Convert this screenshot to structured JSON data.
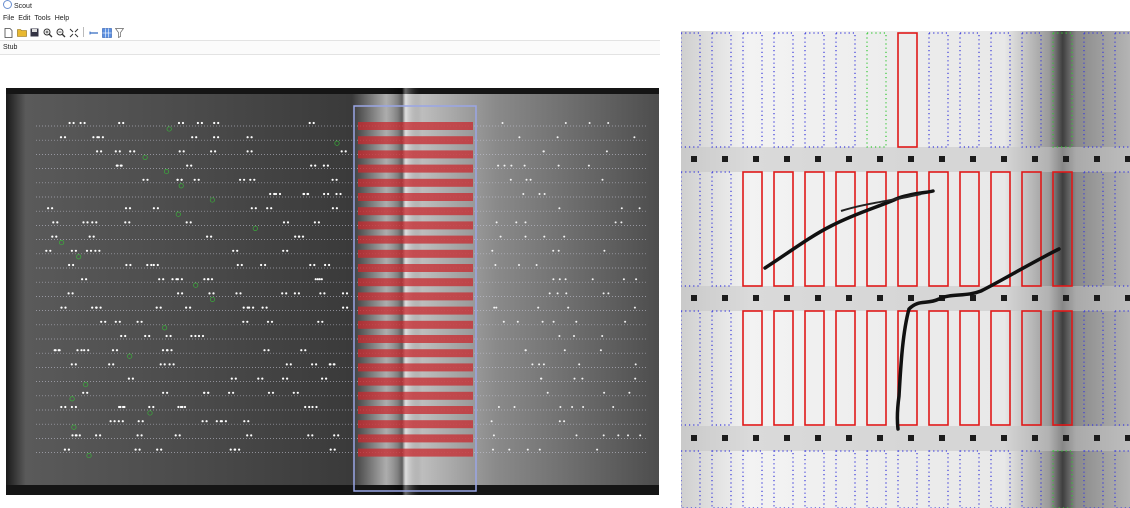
{
  "window": {
    "title": "Scout"
  },
  "menu": {
    "items": [
      "File",
      "Edit",
      "Tools",
      "Help"
    ]
  },
  "toolbar": {
    "buttons": [
      "new-file-icon",
      "open-folder-icon",
      "save-icon",
      "zoom-in-icon",
      "zoom-out-icon",
      "fit-to-window-icon",
      "link-icon",
      "grid-icon",
      "filter-icon"
    ]
  },
  "tabs": [
    {
      "label": "Stub"
    }
  ],
  "colors": {
    "selection_fill": "#c8282d",
    "selection_outline": "#9aa6e6",
    "grid_dots": "#3b3bdc",
    "target_green": "#34c834",
    "crack": "#111111"
  }
}
